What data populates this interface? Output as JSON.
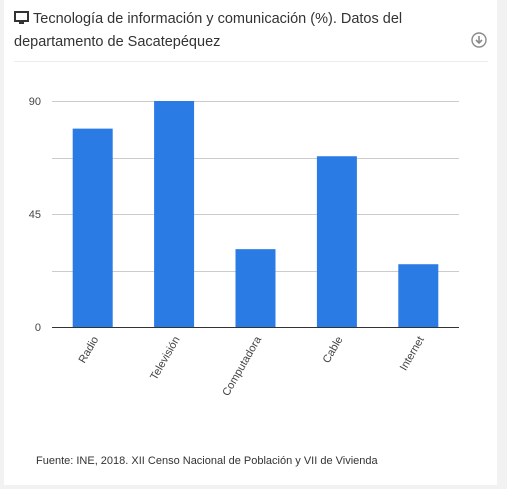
{
  "header": {
    "title": "Tecnología de información y comunicación (%). Datos del departamento de Sacatepéquez",
    "title_icon": "monitor-icon",
    "download_icon": "download-icon"
  },
  "chart_data": {
    "type": "bar",
    "categories": [
      "Radio",
      "Televisión",
      "Computadora",
      "Cable",
      "Internet"
    ],
    "values": [
      79,
      90,
      31,
      68,
      25
    ],
    "title": "Tecnología de información y comunicación (%). Datos del departamento de Sacatepéquez",
    "xlabel": "",
    "ylabel": "",
    "ylim": [
      0,
      90
    ],
    "yticks": [
      "0",
      "45",
      "90"
    ],
    "grid": true,
    "bar_color": "#2a7be4"
  },
  "footer": {
    "source": "Fuente: INE, 2018. XII Censo Nacional de Población y VII de Vivienda"
  }
}
